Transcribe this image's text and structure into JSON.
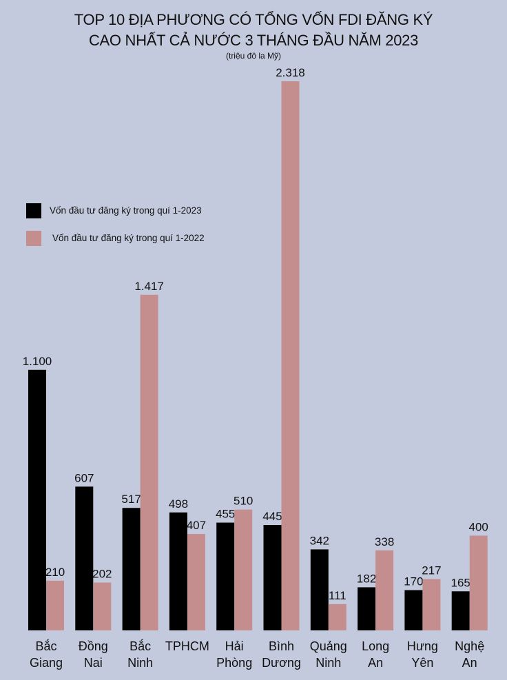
{
  "chart_data": {
    "type": "bar",
    "title": "TOP 10 ĐỊA PHƯƠNG CÓ TỔNG VỐN FDI ĐĂNG KÝ CAO NHẤT CẢ NƯỚC 3 THÁNG ĐẦU NĂM 2023",
    "subtitle": "(triệu đô la Mỹ)",
    "categories": [
      "Bắc Giang",
      "Đồng Nai",
      "Bắc Ninh",
      "TPHCM",
      "Hải Phòng",
      "Bình Dương",
      "Quảng Ninh",
      "Long An",
      "Hưng Yên",
      "Nghệ An"
    ],
    "legend": "upper left",
    "series": [
      {
        "name": "Vốn đầu tư đăng ký trong quí 1-2023",
        "color": "#000000",
        "values": [
          1100,
          607,
          517,
          498,
          455,
          445,
          342,
          182,
          170,
          165
        ],
        "value_labels": [
          "1.100",
          "607",
          "517",
          "498",
          "455",
          "445",
          "342",
          "182",
          "170",
          "165"
        ]
      },
      {
        "name": "Vốn đầu tư đăng ký trong quí 1-2022",
        "color": "#c48e8f",
        "values": [
          210,
          202,
          1417,
          407,
          510,
          2318,
          111,
          338,
          217,
          400
        ],
        "value_labels": [
          "210",
          "202",
          "1.417",
          "407",
          "510",
          "2.318",
          "111",
          "338",
          "217",
          "400"
        ]
      }
    ]
  }
}
